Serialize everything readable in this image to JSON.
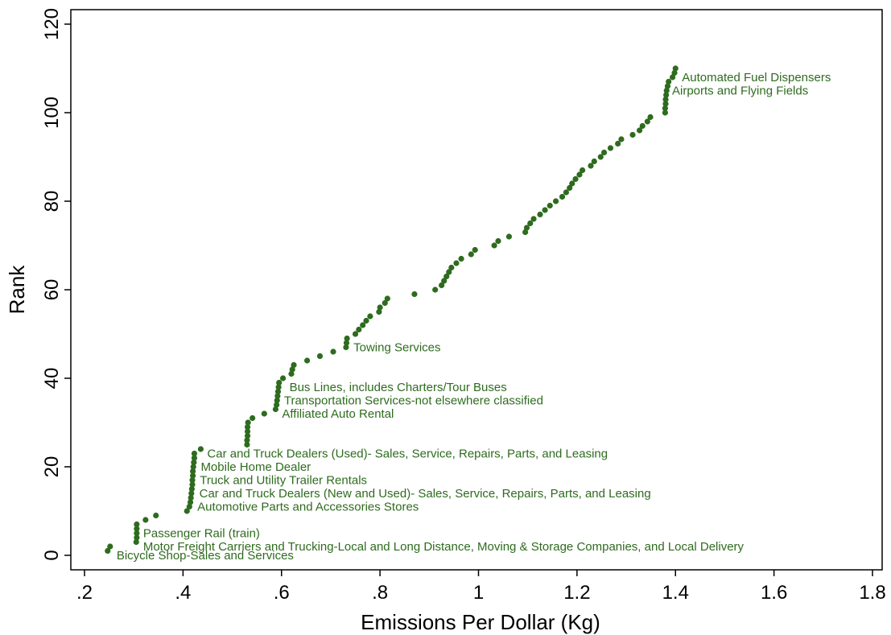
{
  "chart_data": {
    "type": "scatter",
    "xlabel": "Emissions Per Dollar (Kg)",
    "ylabel": "Rank",
    "xlim": [
      0.2,
      1.8
    ],
    "ylim": [
      0,
      120
    ],
    "xticks": [
      0.2,
      0.4,
      0.6,
      0.8,
      1.0,
      1.2,
      1.4,
      1.6,
      1.8
    ],
    "xtick_labels": [
      ".2",
      ".4",
      ".6",
      ".8",
      "1",
      "1.2",
      "1.4",
      "1.6",
      "1.8"
    ],
    "yticks": [
      0,
      20,
      40,
      60,
      80,
      100,
      120
    ],
    "ytick_labels": [
      "0",
      "20",
      "40",
      "60",
      "80",
      "100",
      "120"
    ],
    "grid": false,
    "marker_color": "#2e6b1e",
    "points": [
      [
        0.247,
        1
      ],
      [
        0.252,
        2
      ],
      [
        0.305,
        3
      ],
      [
        0.306,
        4
      ],
      [
        0.306,
        5
      ],
      [
        0.306,
        6
      ],
      [
        0.306,
        7
      ],
      [
        0.324,
        8
      ],
      [
        0.345,
        9
      ],
      [
        0.408,
        10
      ],
      [
        0.413,
        11
      ],
      [
        0.415,
        12
      ],
      [
        0.416,
        13
      ],
      [
        0.417,
        14
      ],
      [
        0.418,
        15
      ],
      [
        0.419,
        16
      ],
      [
        0.419,
        17
      ],
      [
        0.42,
        18
      ],
      [
        0.42,
        19
      ],
      [
        0.421,
        20
      ],
      [
        0.422,
        21
      ],
      [
        0.423,
        22
      ],
      [
        0.423,
        23
      ],
      [
        0.436,
        24
      ],
      [
        0.53,
        25
      ],
      [
        0.53,
        26
      ],
      [
        0.531,
        27
      ],
      [
        0.531,
        28
      ],
      [
        0.531,
        29
      ],
      [
        0.532,
        30
      ],
      [
        0.541,
        31
      ],
      [
        0.565,
        32
      ],
      [
        0.588,
        33
      ],
      [
        0.59,
        34
      ],
      [
        0.591,
        35
      ],
      [
        0.592,
        36
      ],
      [
        0.593,
        37
      ],
      [
        0.594,
        38
      ],
      [
        0.595,
        39
      ],
      [
        0.603,
        40
      ],
      [
        0.62,
        41
      ],
      [
        0.622,
        42
      ],
      [
        0.625,
        43
      ],
      [
        0.652,
        44
      ],
      [
        0.678,
        45
      ],
      [
        0.705,
        46
      ],
      [
        0.731,
        47
      ],
      [
        0.732,
        48
      ],
      [
        0.733,
        49
      ],
      [
        0.75,
        50
      ],
      [
        0.757,
        51
      ],
      [
        0.765,
        52
      ],
      [
        0.772,
        53
      ],
      [
        0.78,
        54
      ],
      [
        0.798,
        55
      ],
      [
        0.8,
        56
      ],
      [
        0.81,
        57
      ],
      [
        0.815,
        58
      ],
      [
        0.87,
        59
      ],
      [
        0.912,
        60
      ],
      [
        0.925,
        61
      ],
      [
        0.93,
        62
      ],
      [
        0.935,
        63
      ],
      [
        0.94,
        64
      ],
      [
        0.945,
        65
      ],
      [
        0.955,
        66
      ],
      [
        0.965,
        67
      ],
      [
        0.985,
        68
      ],
      [
        0.993,
        69
      ],
      [
        1.032,
        70
      ],
      [
        1.04,
        71
      ],
      [
        1.062,
        72
      ],
      [
        1.095,
        73
      ],
      [
        1.098,
        74
      ],
      [
        1.105,
        75
      ],
      [
        1.112,
        76
      ],
      [
        1.125,
        77
      ],
      [
        1.135,
        78
      ],
      [
        1.145,
        79
      ],
      [
        1.157,
        80
      ],
      [
        1.17,
        81
      ],
      [
        1.178,
        82
      ],
      [
        1.185,
        83
      ],
      [
        1.19,
        84
      ],
      [
        1.197,
        85
      ],
      [
        1.205,
        86
      ],
      [
        1.211,
        87
      ],
      [
        1.228,
        88
      ],
      [
        1.235,
        89
      ],
      [
        1.248,
        90
      ],
      [
        1.255,
        91
      ],
      [
        1.268,
        92
      ],
      [
        1.283,
        93
      ],
      [
        1.29,
        94
      ],
      [
        1.313,
        95
      ],
      [
        1.327,
        96
      ],
      [
        1.333,
        97
      ],
      [
        1.343,
        98
      ],
      [
        1.349,
        99
      ],
      [
        1.379,
        100
      ],
      [
        1.379,
        101
      ],
      [
        1.38,
        102
      ],
      [
        1.38,
        103
      ],
      [
        1.381,
        104
      ],
      [
        1.382,
        105
      ],
      [
        1.384,
        106
      ],
      [
        1.386,
        107
      ],
      [
        1.394,
        108
      ],
      [
        1.398,
        109
      ],
      [
        1.4,
        110
      ]
    ],
    "annotations": [
      {
        "text": "Automated Fuel Dispensers",
        "x": 1.4,
        "y": 108
      },
      {
        "text": "Airports and Flying Fields",
        "x": 1.38,
        "y": 105
      },
      {
        "text": "Towing Services",
        "x": 0.733,
        "y": 47
      },
      {
        "text": "Bus Lines, includes Charters/Tour Buses",
        "x": 0.603,
        "y": 38
      },
      {
        "text": "Transportation Services-not elsewhere classified",
        "x": 0.592,
        "y": 35
      },
      {
        "text": "Affiliated Auto Rental",
        "x": 0.588,
        "y": 32
      },
      {
        "text": "Car and Truck Dealers (Used)- Sales, Service, Repairs, Parts, and Leasing",
        "x": 0.436,
        "y": 23
      },
      {
        "text": "Mobile Home Dealer",
        "x": 0.423,
        "y": 20
      },
      {
        "text": "Truck and Utility Trailer Rentals",
        "x": 0.421,
        "y": 17
      },
      {
        "text": "Car and Truck Dealers (New and Used)- Sales, Service, Repairs, Parts, and Leasing",
        "x": 0.42,
        "y": 14
      },
      {
        "text": "Automotive Parts and Accessories Stores",
        "x": 0.416,
        "y": 11
      },
      {
        "text": "Passenger Rail (train)",
        "x": 0.306,
        "y": 5
      },
      {
        "text": "Motor Freight Carriers and Trucking-Local and Long Distance, Moving & Storage Companies, and Local Delivery",
        "x": 0.306,
        "y": 2
      },
      {
        "text": "Bicycle Shop-Sales and Services",
        "x": 0.252,
        "y": 0
      }
    ]
  }
}
